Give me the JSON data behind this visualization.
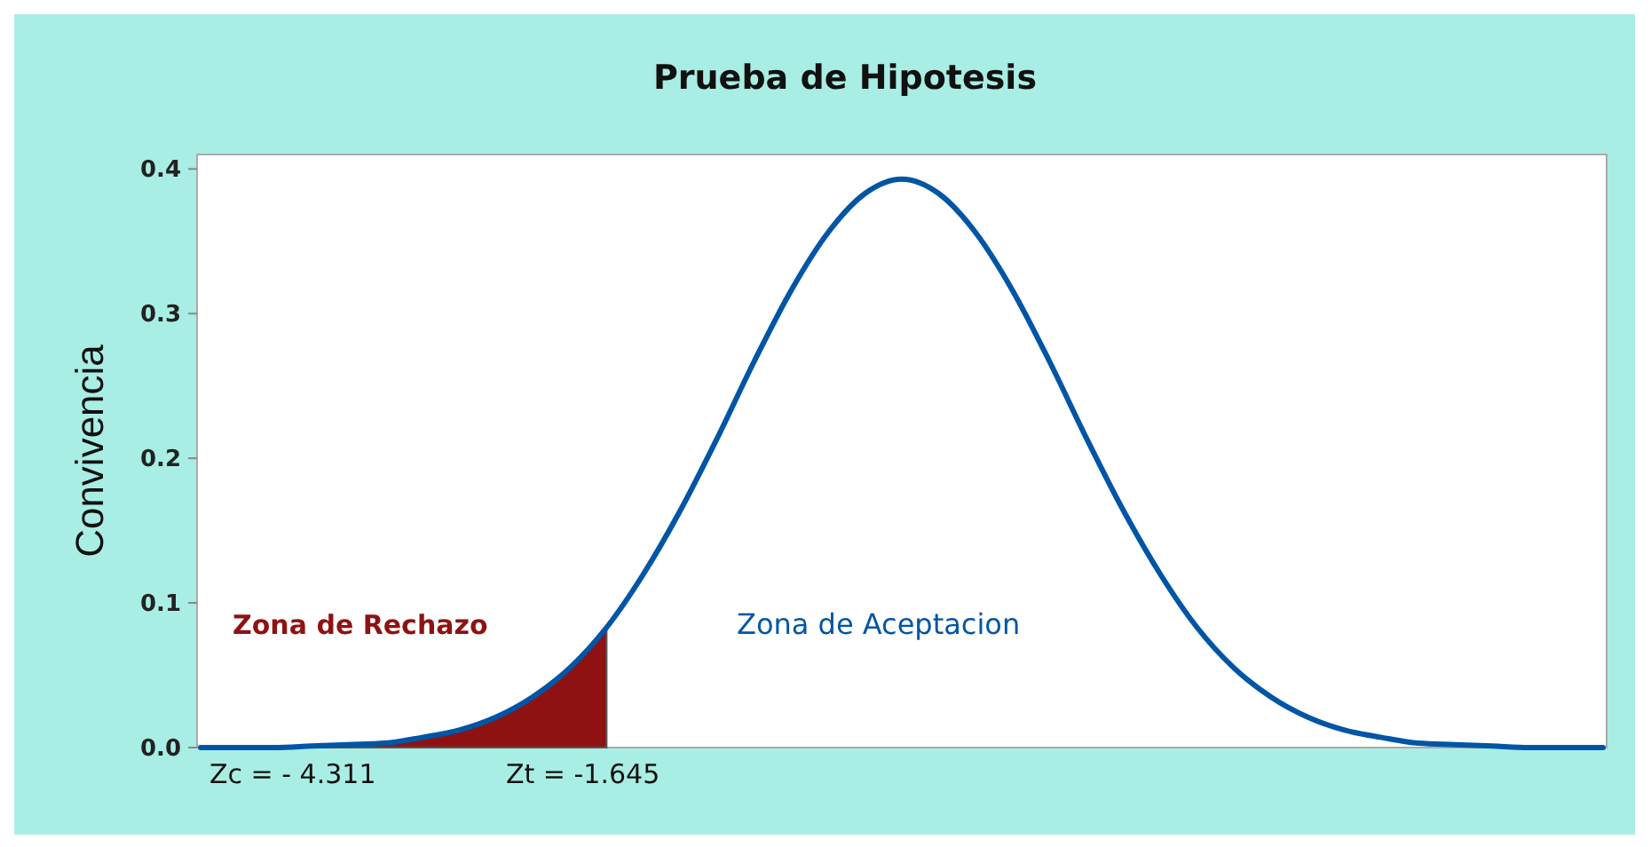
{
  "chart_data": {
    "type": "line",
    "title": "Prueba de Hipotesis",
    "ylabel": "Convivencia",
    "categories": [
      null,
      null,
      null,
      null,
      null,
      null,
      null,
      null,
      null,
      null,
      null,
      null,
      null,
      null,
      null,
      null,
      null,
      null,
      null,
      null,
      null,
      null,
      null,
      null,
      null,
      null,
      null,
      null,
      null,
      null,
      null,
      null,
      null,
      null,
      null,
      null,
      null,
      null,
      null
    ],
    "series": [
      {
        "color": "#0055a5",
        "values": [
          0,
          0,
          0,
          0.001,
          0.002,
          0.003,
          0.007,
          0.012,
          0.021,
          0.035,
          0.055,
          0.083,
          0.12,
          0.164,
          0.214,
          0.267,
          0.316,
          0.356,
          0.383,
          0.393,
          0.383,
          0.356,
          0.316,
          0.267,
          0.214,
          0.164,
          0.12,
          0.083,
          0.055,
          0.035,
          0.021,
          0.012,
          0.007,
          0.003,
          0.002,
          0.001,
          0,
          0,
          0
        ]
      },
      {
        "type": "area",
        "color": "#8e1212",
        "values": [
          0,
          0,
          0,
          0.001,
          0.002,
          0.003,
          0.007,
          0.012,
          0.021,
          0.035,
          0.055,
          0.083,
          null,
          null,
          null,
          null,
          null,
          null,
          null,
          null,
          null,
          null,
          null,
          null,
          null,
          null,
          null,
          null,
          null,
          null,
          null,
          null,
          null,
          null,
          null,
          null,
          null,
          null,
          null
        ]
      }
    ],
    "ylim": [
      0,
      0.41
    ],
    "yticks": [
      {
        "value": 0,
        "label": "0.0"
      },
      {
        "value": 0.1,
        "label": "0.1"
      },
      {
        "value": 0.2,
        "label": "0.2"
      },
      {
        "value": 0.3,
        "label": "0.3"
      },
      {
        "value": 0.4,
        "label": "0.4"
      }
    ],
    "tick_labels": "y",
    "grid": false,
    "annotations": [
      "Zona de Rechazo",
      "Zona de Aceptacion",
      "Zc = - 4.311",
      "Zt = -1.645"
    ]
  }
}
